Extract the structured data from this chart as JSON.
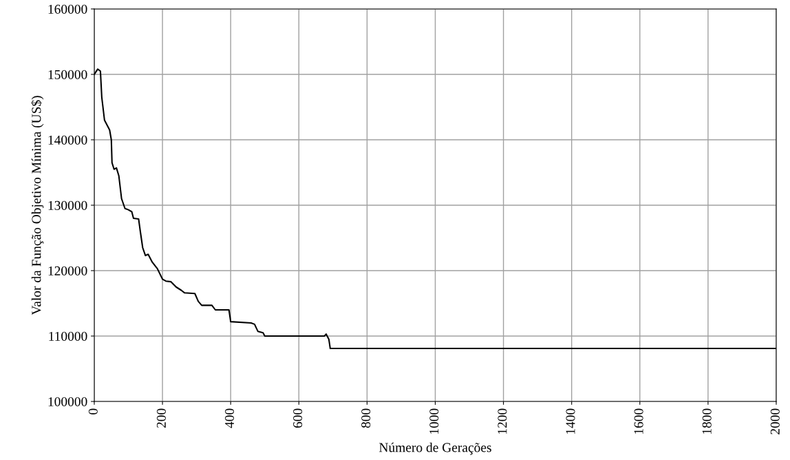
{
  "chart_data": {
    "type": "line",
    "xlabel": "Número de Gerações",
    "ylabel": "Valor da Função Objetivo Mínima (US$)",
    "series": [
      {
        "color": "#000000",
        "x": [
          0,
          10,
          18,
          22,
          30,
          40,
          45,
          50,
          52,
          58,
          65,
          72,
          80,
          90,
          100,
          110,
          115,
          130,
          135,
          142,
          150,
          158,
          170,
          185,
          200,
          210,
          225,
          240,
          255,
          265,
          295,
          305,
          315,
          345,
          355,
          395,
          400,
          460,
          470,
          480,
          495,
          500,
          675,
          680,
          688,
          692,
          2000
        ],
        "values": [
          150000,
          150800,
          150500,
          146500,
          143000,
          142000,
          141500,
          140000,
          136500,
          135500,
          135700,
          134500,
          131000,
          129500,
          129300,
          129000,
          128000,
          127900,
          126000,
          123500,
          122300,
          122500,
          121300,
          120300,
          118700,
          118400,
          118300,
          117500,
          117000,
          116600,
          116500,
          115300,
          114700,
          114700,
          114000,
          114000,
          112200,
          112000,
          111800,
          110700,
          110500,
          110000,
          110000,
          110300,
          109500,
          108100,
          108100
        ]
      }
    ],
    "xlim": [
      0,
      2000
    ],
    "xticks": [
      0,
      200,
      400,
      600,
      800,
      1000,
      1200,
      1400,
      1600,
      1800,
      2000
    ],
    "ylim": [
      100000,
      160000
    ],
    "yticks": [
      100000,
      110000,
      120000,
      130000,
      140000,
      150000,
      160000
    ],
    "grid": true,
    "legend": false,
    "marker": "none",
    "line_style": "solid"
  }
}
